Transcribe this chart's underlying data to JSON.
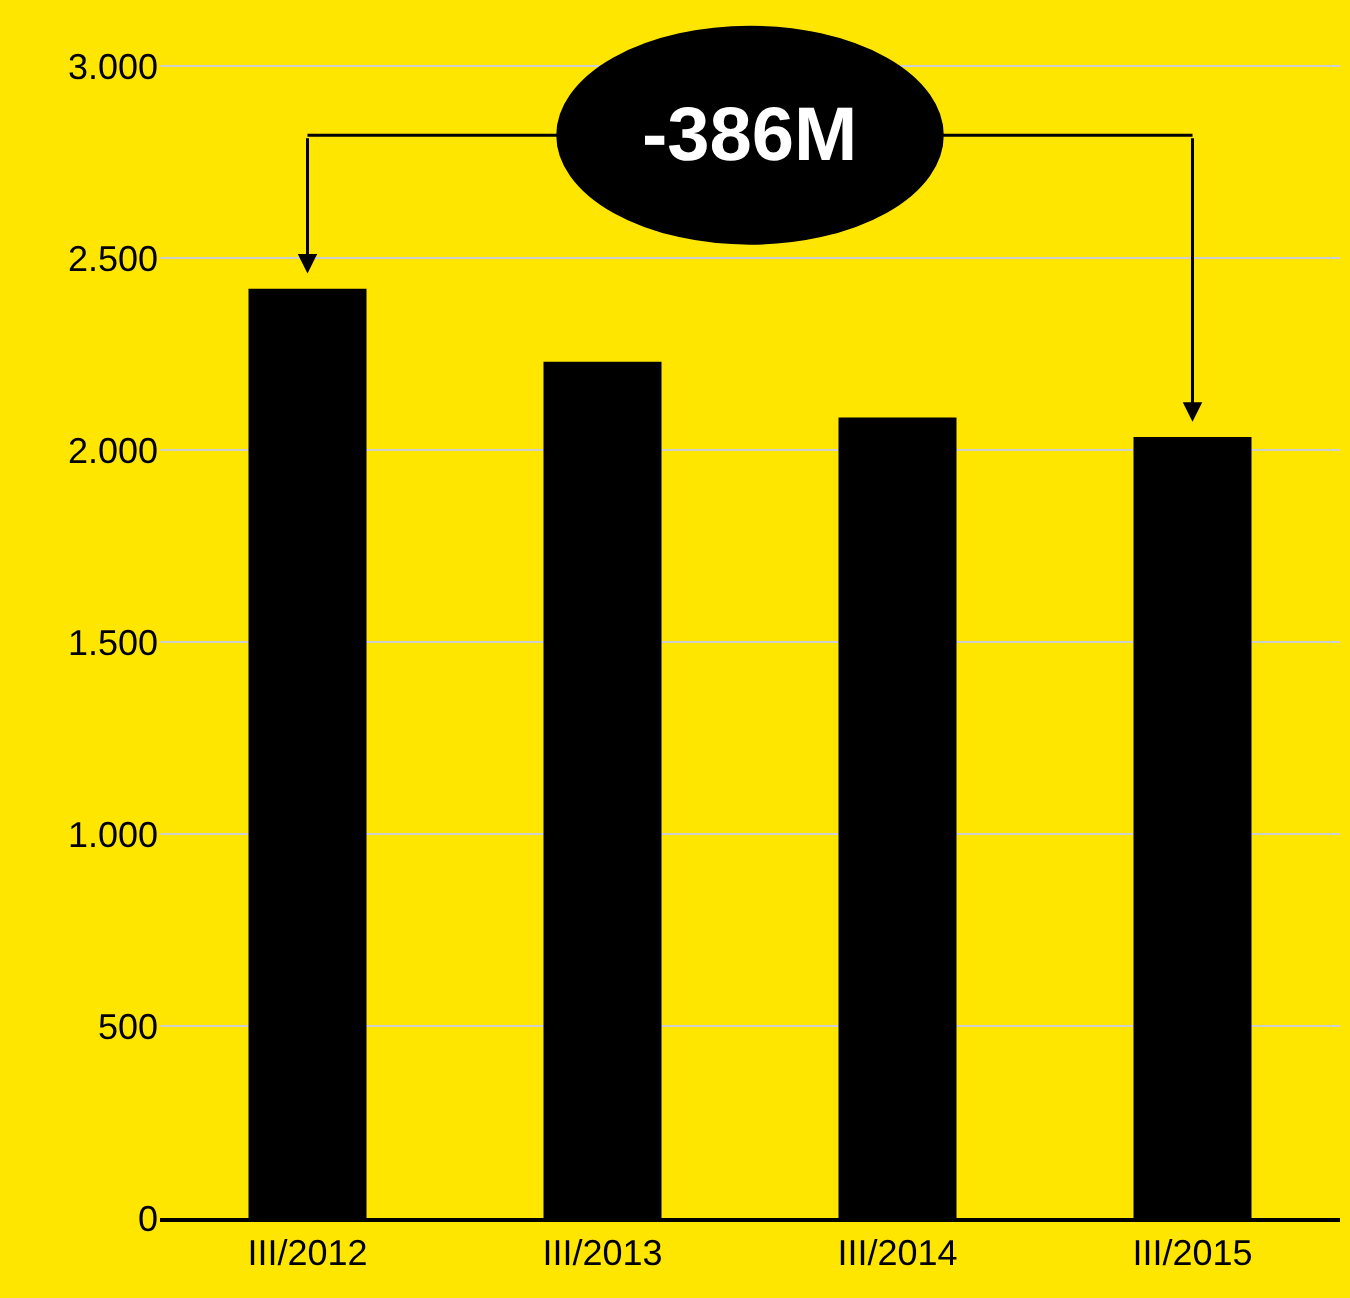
{
  "chart_data": {
    "type": "bar",
    "categories": [
      "III/2012",
      "III/2013",
      "III/2014",
      "III/2015"
    ],
    "values": [
      2420,
      2230,
      2085,
      2034
    ],
    "color": "#000000",
    "ylim": [
      0,
      3000
    ],
    "yticks": [
      {
        "value": 0,
        "label": "0"
      },
      {
        "value": 500,
        "label": "500"
      },
      {
        "value": 1000,
        "label": "1.000"
      },
      {
        "value": 1500,
        "label": "1.500"
      },
      {
        "value": 2000,
        "label": "2.000"
      },
      {
        "value": 2500,
        "label": "2.500"
      },
      {
        "value": 3000,
        "label": "3.000"
      }
    ],
    "grid": "y",
    "annotations": [
      "-386M"
    ]
  }
}
